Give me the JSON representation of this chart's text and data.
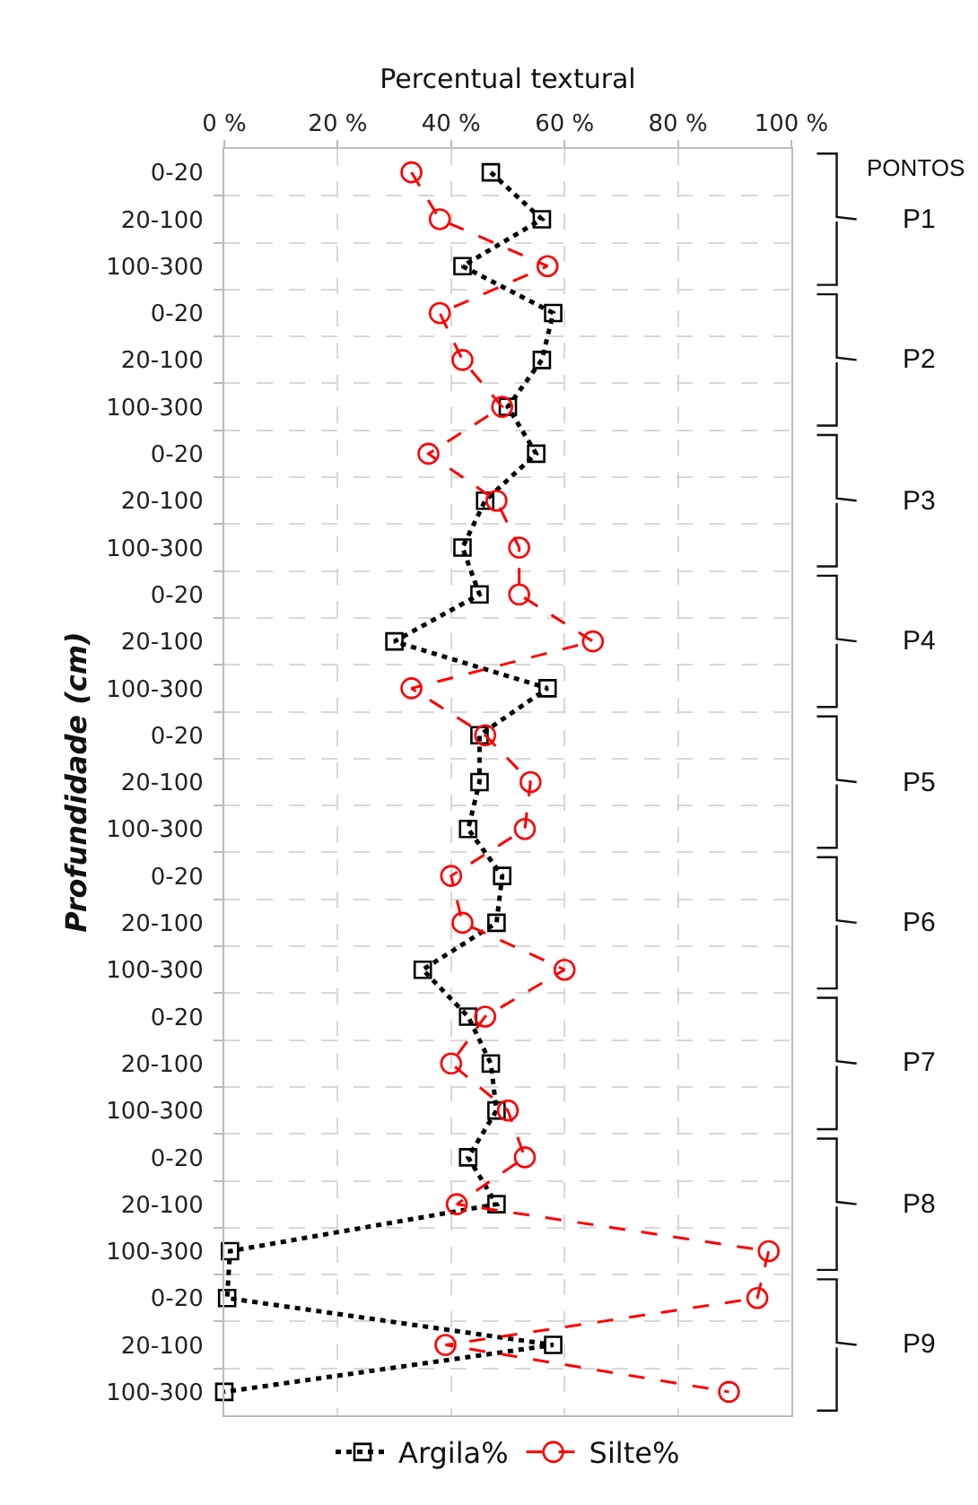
{
  "chart_data": {
    "type": "line",
    "orientation": "horizontal",
    "xlabel": "Percentual textural",
    "ylabel": "Profundidade (cm)",
    "categories": [
      "0-20",
      "20-100",
      "100-300",
      "0-20",
      "20-100",
      "100-300",
      "0-20",
      "20-100",
      "100-300",
      "0-20",
      "20-100",
      "100-300",
      "0-20",
      "20-100",
      "100-300",
      "0-20",
      "20-100",
      "100-300",
      "0-20",
      "20-100",
      "100-300",
      "0-20",
      "20-100",
      "100-300",
      "0-20",
      "20-100",
      "100-300"
    ],
    "series": [
      {
        "name": "Argila%",
        "color": "#000000",
        "marker": "square",
        "line_style": "dotted",
        "values": [
          47,
          56,
          42,
          58,
          56,
          50,
          55,
          46,
          42,
          45,
          30,
          57,
          45,
          45,
          43,
          49,
          48,
          35,
          43,
          47,
          48,
          43,
          48,
          1,
          0.5,
          58,
          0
        ]
      },
      {
        "name": "Silte%",
        "color": "#ff0000",
        "marker": "circle",
        "line_style": "dashed",
        "values": [
          33,
          38,
          57,
          38,
          42,
          49,
          36,
          48,
          52,
          52,
          65,
          33,
          46,
          54,
          53,
          40,
          42,
          60,
          46,
          40,
          50,
          53,
          41,
          96,
          94,
          39,
          89
        ]
      }
    ],
    "xlim": [
      0,
      100
    ],
    "xticks": [
      {
        "value": 0,
        "label": "0 %"
      },
      {
        "value": 20,
        "label": "20 %"
      },
      {
        "value": 40,
        "label": "40 %"
      },
      {
        "value": 60,
        "label": "60 %"
      },
      {
        "value": 80,
        "label": "80 %"
      },
      {
        "value": 100,
        "label": "100 %"
      }
    ],
    "grid": true,
    "legend": "bottom",
    "annotations": [
      "PONTOS",
      "P1",
      "P2",
      "P3",
      "P4",
      "P5",
      "P6",
      "P7",
      "P8",
      "P9"
    ]
  }
}
